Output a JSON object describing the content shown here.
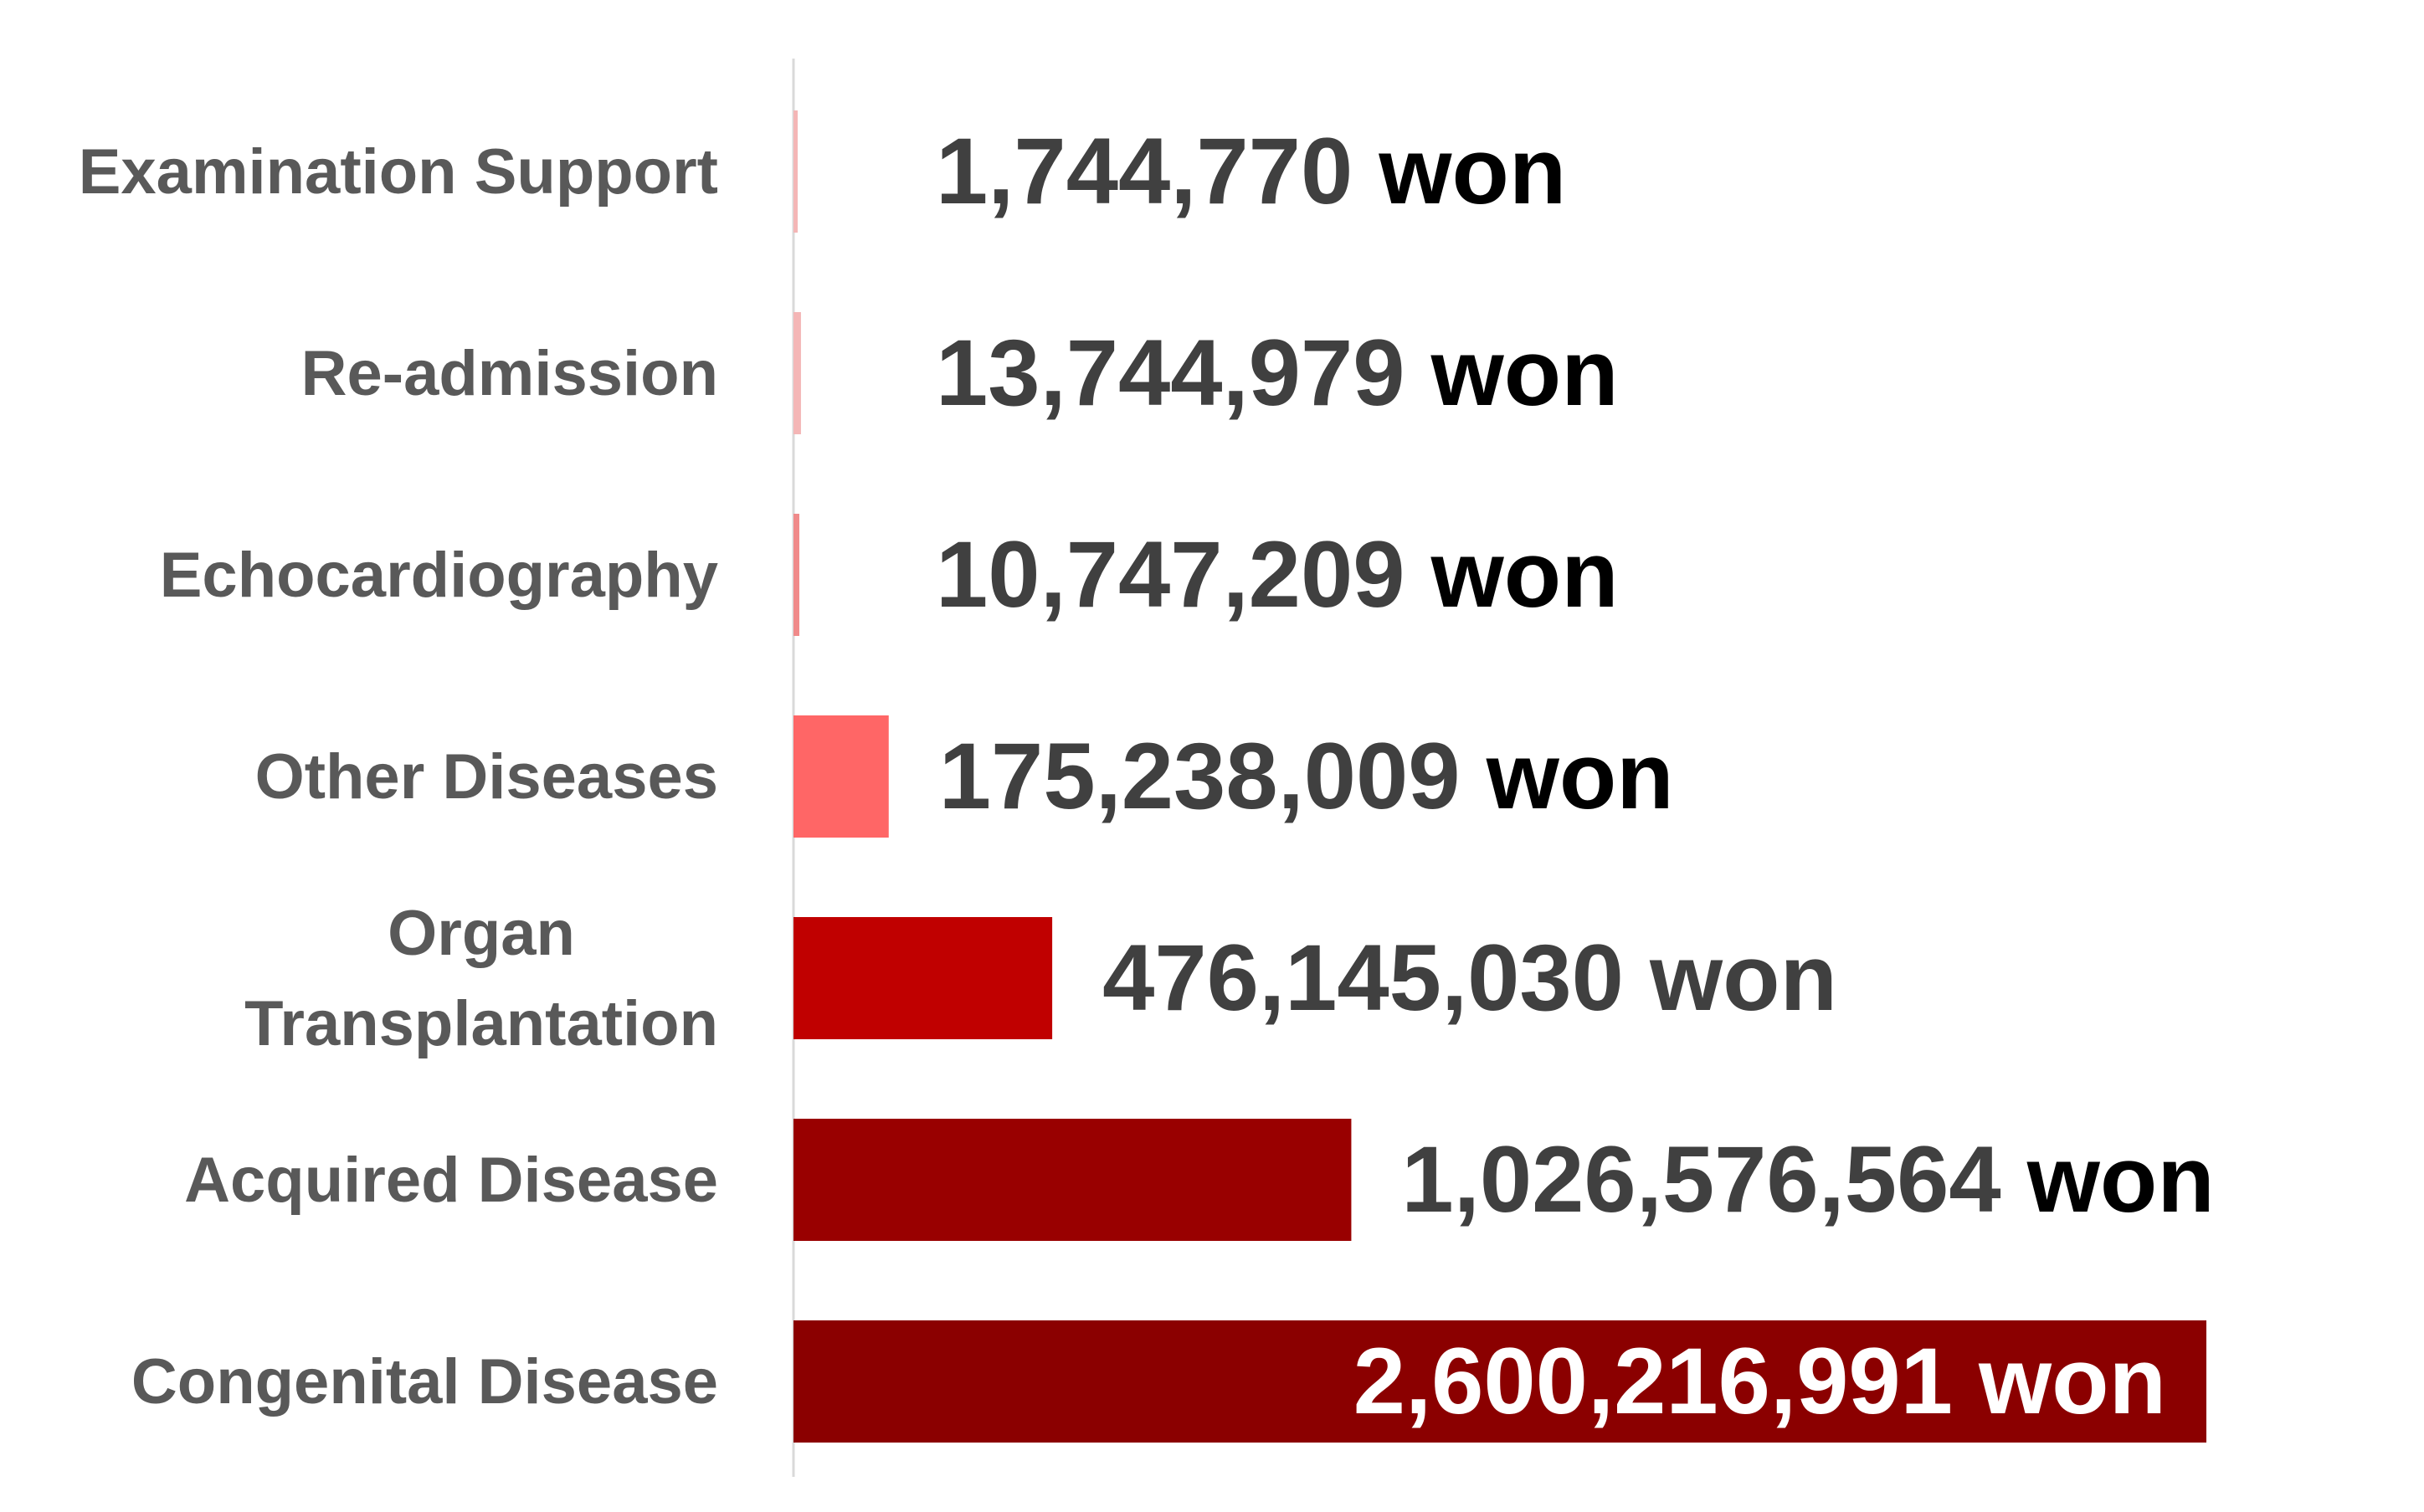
{
  "chart_data": {
    "type": "bar",
    "orientation": "horizontal",
    "unit": "won",
    "categories": [
      "Examination Support",
      "Re-admission",
      "Echocardiography",
      "Other Diseases",
      "Organ Transplantation",
      "Acquired Disease",
      "Congenital Disease"
    ],
    "category_lines": [
      [
        "Examination Support"
      ],
      [
        "Re-admission"
      ],
      [
        "Echocardiography"
      ],
      [
        "Other Diseases"
      ],
      [
        "Organ",
        "Transplantation"
      ],
      [
        "Acquired Disease"
      ],
      [
        "Congenital Disease"
      ]
    ],
    "values": [
      1744770,
      13744979,
      10747209,
      175238009,
      476145030,
      1026576564,
      2600216991
    ],
    "value_labels": [
      "1,744,770",
      "13,744,979",
      "10,747,209",
      "175,238,009",
      "476,145,030",
      "1,026,576,564",
      "2,600,216,991"
    ],
    "bar_colors": [
      "#f4b6b6",
      "#f4b6b6",
      "#f08a8a",
      "#ff6666",
      "#c00000",
      "#990000",
      "#8b0000"
    ],
    "label_color": "#404040",
    "label_color_inside": "#ffffff",
    "unit_color": "#000000",
    "category_label_color": "#595959",
    "axis_line_color": "#d9d9d9",
    "xlim": [
      0,
      2600216991
    ],
    "grid": false,
    "legend": "none",
    "title": "",
    "xlabel": "",
    "ylabel": ""
  }
}
